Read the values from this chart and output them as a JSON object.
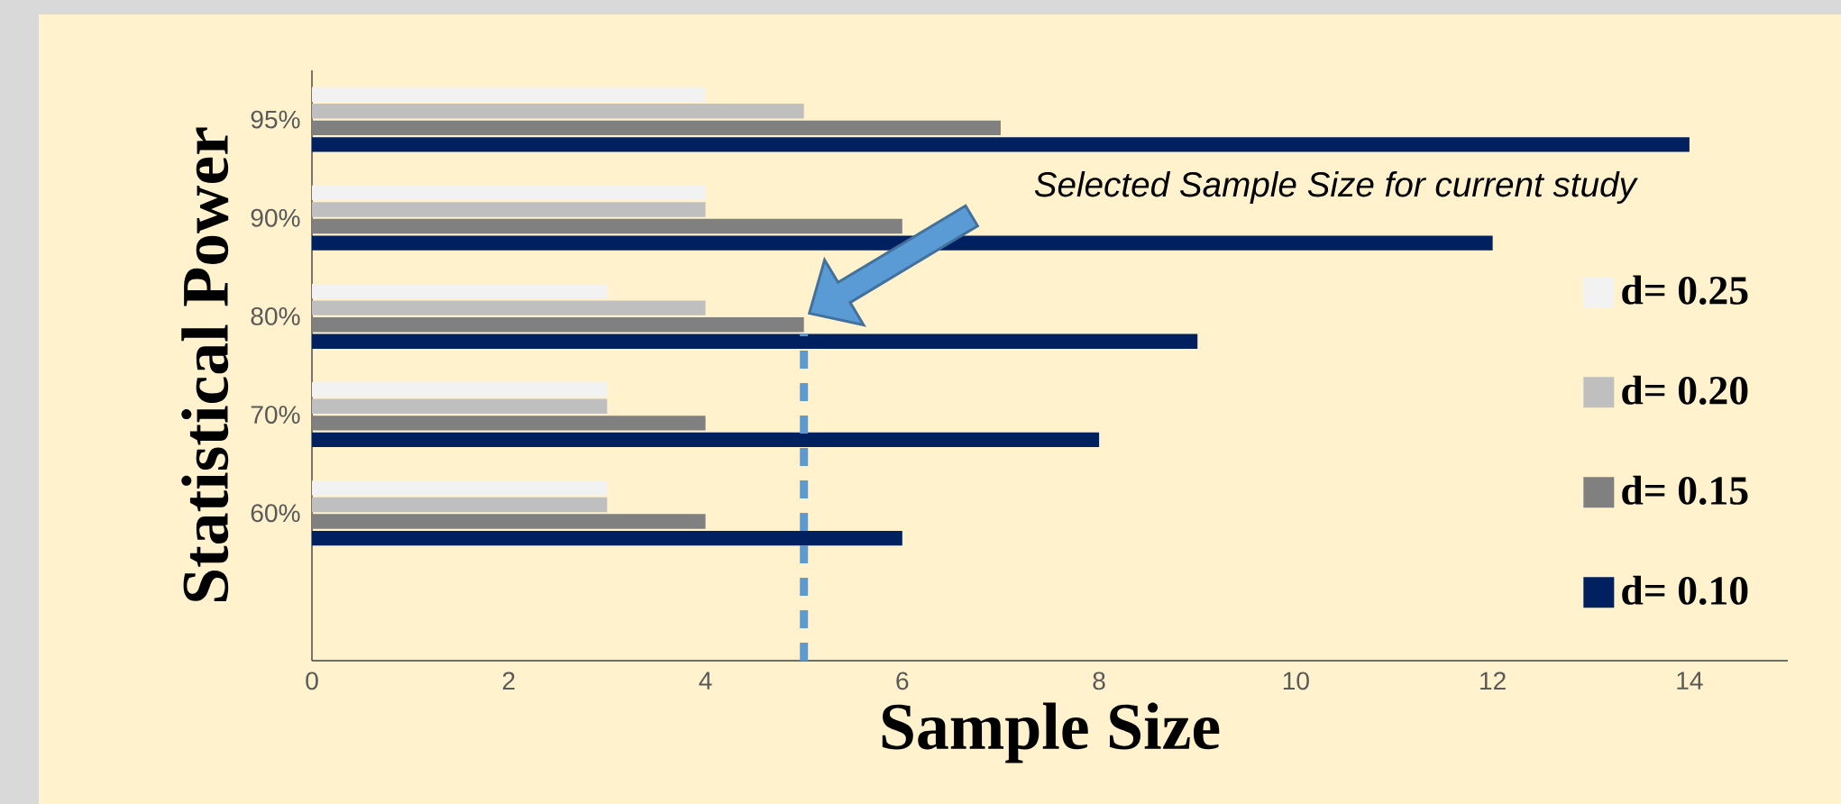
{
  "chart_data": {
    "type": "bar",
    "orientation": "horizontal",
    "xlabel": "Sample Size",
    "ylabel": "Statistical Power",
    "categories": [
      "95%",
      "90%",
      "80%",
      "70%",
      "60%"
    ],
    "series": [
      {
        "name": "d= 0.25",
        "color": "#f2f2f2",
        "values": [
          4,
          4,
          3,
          3,
          3
        ]
      },
      {
        "name": "d= 0.20",
        "color": "#bfbfbf",
        "values": [
          5,
          4,
          4,
          3,
          3
        ]
      },
      {
        "name": "d= 0.15",
        "color": "#808080",
        "values": [
          7,
          6,
          5,
          4,
          4
        ]
      },
      {
        "name": "d= 0.10",
        "color": "#002060",
        "values": [
          14,
          12,
          9,
          8,
          6
        ]
      }
    ],
    "xlim": [
      0,
      15
    ],
    "xticks": [
      0,
      2,
      4,
      6,
      8,
      10,
      12,
      14
    ],
    "ref_lines": [
      {
        "axis": "x",
        "value": 5,
        "color": "#5b9bd5",
        "line_style": "dashed"
      }
    ],
    "annotations": [
      "Selected Sample Size for current study"
    ],
    "legend": "right",
    "grid": false
  }
}
